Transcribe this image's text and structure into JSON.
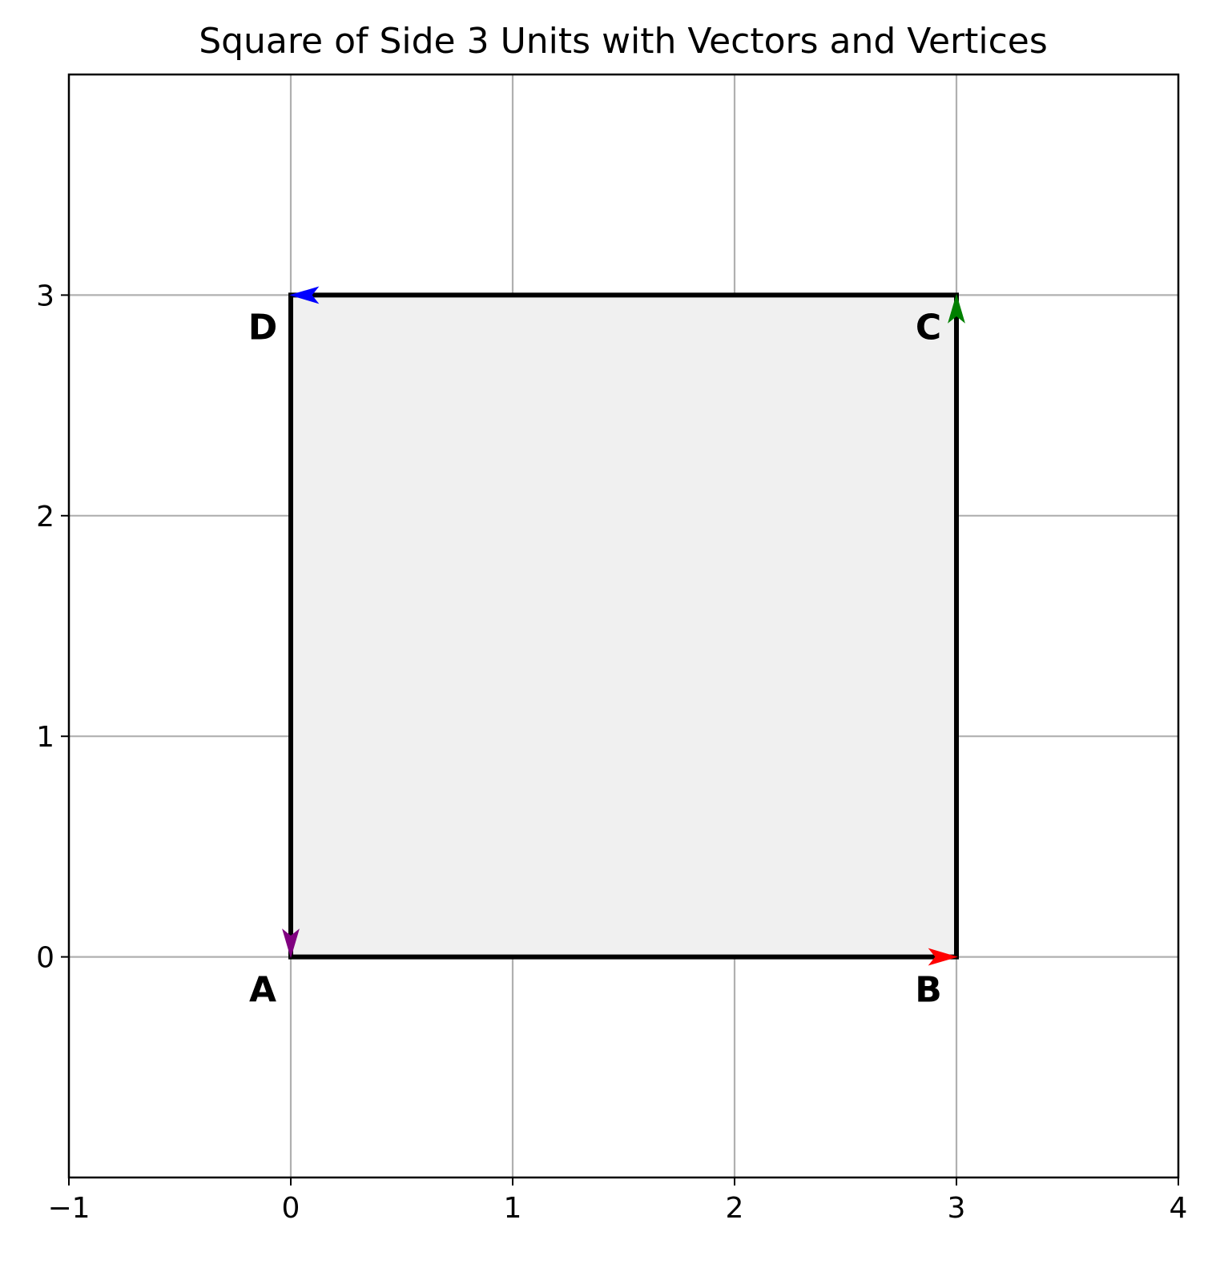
{
  "chart_data": {
    "type": "scatter",
    "title": "Square of Side 3 Units with Vectors and Vertices",
    "xlabel": "",
    "ylabel": "",
    "xlim": [
      -1,
      4
    ],
    "ylim": [
      -1,
      4
    ],
    "xticks": [
      -1,
      0,
      1,
      2,
      3,
      4
    ],
    "xtick_labels": [
      "−1",
      "0",
      "1",
      "2",
      "3",
      "4"
    ],
    "yticks": [
      0,
      1,
      2,
      3
    ],
    "ytick_labels": [
      "0",
      "1",
      "2",
      "3"
    ],
    "grid": true,
    "square": {
      "vertices": [
        [
          0,
          0
        ],
        [
          3,
          0
        ],
        [
          3,
          3
        ],
        [
          0,
          3
        ]
      ],
      "fill_color": "#f0f0f0",
      "edge_color": "#000000"
    },
    "vertex_labels": [
      {
        "label": "A",
        "x": 0,
        "y": 0
      },
      {
        "label": "B",
        "x": 3,
        "y": 0
      },
      {
        "label": "C",
        "x": 3,
        "y": 3
      },
      {
        "label": "D",
        "x": 0,
        "y": 3
      }
    ],
    "vectors": [
      {
        "from": [
          0,
          0
        ],
        "to": [
          3,
          0
        ],
        "color": "#ff0000"
      },
      {
        "from": [
          3,
          0
        ],
        "to": [
          3,
          3
        ],
        "color": "#008000"
      },
      {
        "from": [
          3,
          3
        ],
        "to": [
          0,
          3
        ],
        "color": "#0000ff"
      },
      {
        "from": [
          0,
          3
        ],
        "to": [
          0,
          0
        ],
        "color": "#800080"
      }
    ],
    "grid_color": "#b0b0b0"
  }
}
